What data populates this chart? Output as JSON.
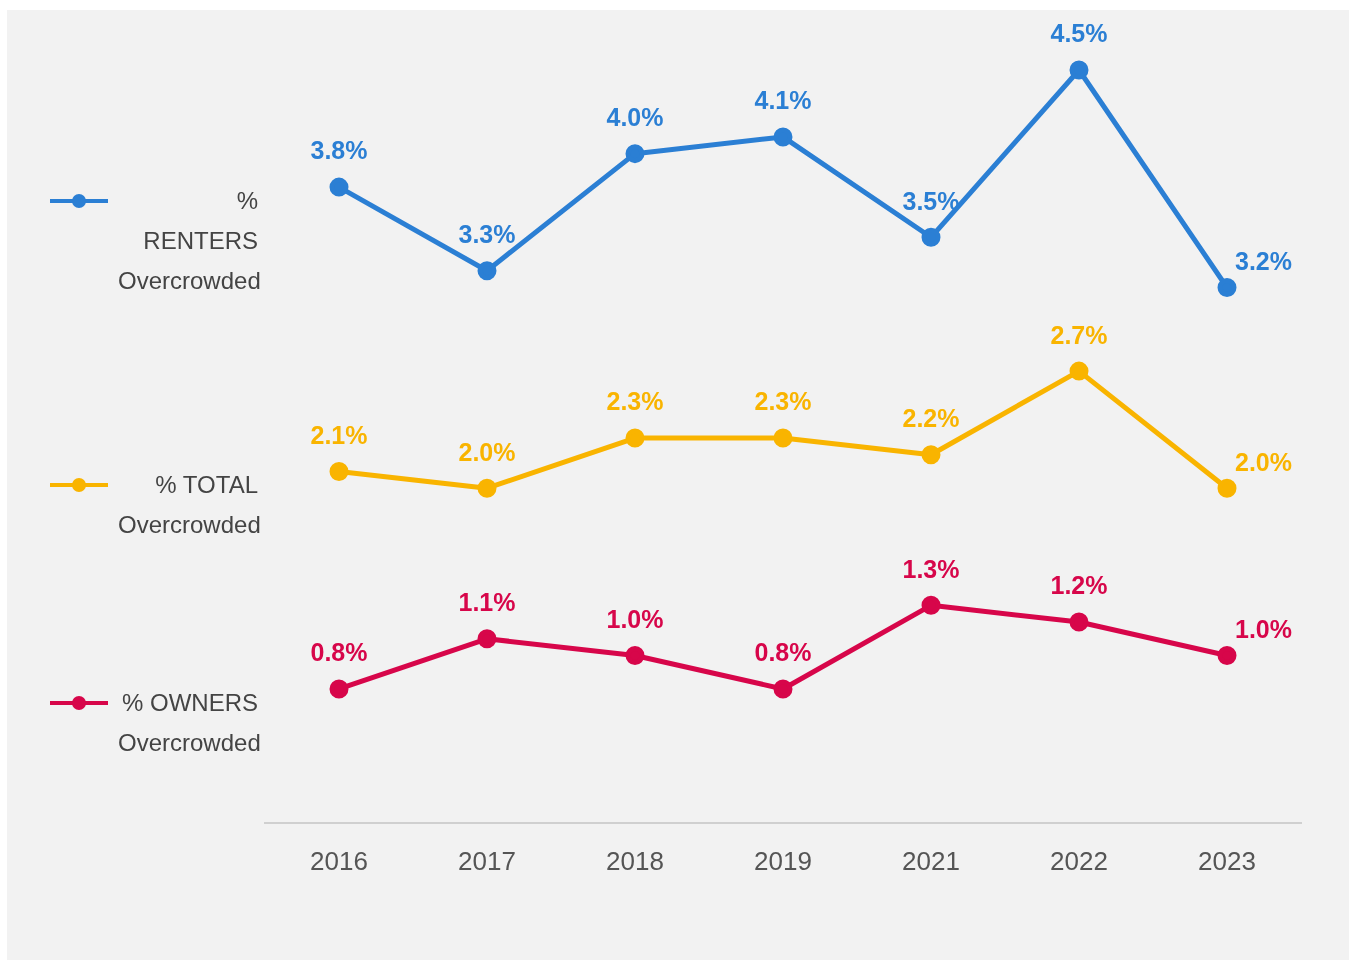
{
  "chart_data": {
    "type": "line",
    "categories": [
      "2016",
      "2017",
      "2018",
      "2019",
      "2021",
      "2022",
      "2023"
    ],
    "series": [
      {
        "name": "% RENTERS Overcrowded",
        "color": "#2b7fd4",
        "values": [
          3.8,
          3.3,
          4.0,
          4.1,
          3.5,
          4.5,
          3.2
        ],
        "value_labels": [
          "3.8%",
          "3.3%",
          "4.0%",
          "4.1%",
          "3.5%",
          "4.5%",
          "3.2%"
        ]
      },
      {
        "name": "% TOTAL Overcrowded",
        "color": "#f9b400",
        "values": [
          2.1,
          2.0,
          2.3,
          2.3,
          2.2,
          2.7,
          2.0
        ],
        "value_labels": [
          "2.1%",
          "2.0%",
          "2.3%",
          "2.3%",
          "2.2%",
          "2.7%",
          "2.0%"
        ]
      },
      {
        "name": "% OWNERS Overcrowded",
        "color": "#d7064a",
        "values": [
          0.8,
          1.1,
          1.0,
          0.8,
          1.3,
          1.2,
          1.0
        ],
        "value_labels": [
          "0.8%",
          "1.1%",
          "1.0%",
          "0.8%",
          "1.3%",
          "1.2%",
          "1.0%"
        ]
      }
    ],
    "legend": "left",
    "marker": "circle",
    "line_style": "solid",
    "tick_labels": "x"
  }
}
